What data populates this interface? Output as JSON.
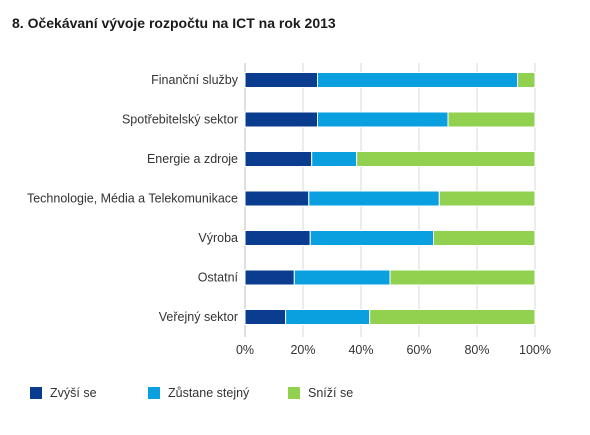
{
  "chart_data": {
    "type": "bar",
    "orientation": "horizontal",
    "stacked": true,
    "title": "8. Očekávaní vývoje rozpočtu na ICT na rok 2013",
    "categories": [
      "Finanční služby",
      "Spotřebitelský sektor",
      "Energie a zdroje",
      "Technologie, Média a Telekomunikace",
      "Výroba",
      "Ostatní",
      "Veřejný sektor"
    ],
    "series": [
      {
        "name": "Zvýší se",
        "color": "#0a3d8f",
        "values": [
          25,
          25,
          23,
          22,
          22.5,
          17,
          14
        ]
      },
      {
        "name": "Zůstane stejný",
        "color": "#0aa0e0",
        "values": [
          69,
          45,
          15.5,
          45,
          42.5,
          33,
          29
        ]
      },
      {
        "name": "Sníží se",
        "color": "#92d050",
        "values": [
          6,
          30,
          61.5,
          33,
          35,
          50,
          57
        ]
      }
    ],
    "xlim": [
      0,
      100
    ],
    "xticks": [
      "0%",
      "20%",
      "40%",
      "60%",
      "80%",
      "100%"
    ],
    "xlabel": "",
    "ylabel": "",
    "grid": true,
    "legend_position": "bottom"
  }
}
